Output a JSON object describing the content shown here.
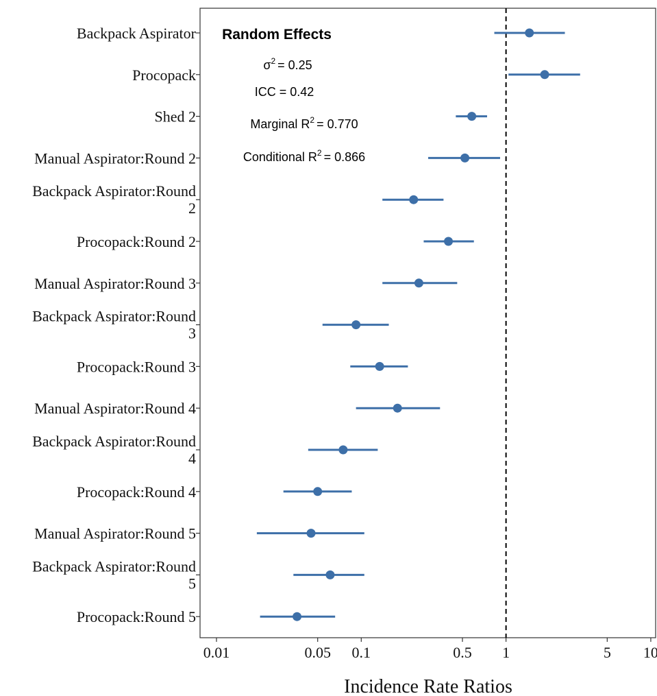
{
  "chart_data": {
    "type": "scatter",
    "subtype": "forest-plot",
    "x_scale": "log",
    "xlim": [
      0.0077,
      10.8
    ],
    "x_ticks": [
      0.01,
      0.05,
      0.1,
      0.5,
      1,
      5,
      10
    ],
    "x_tick_labels": [
      "0.01",
      "0.05",
      "0.1",
      "0.5",
      "1",
      "5",
      "10"
    ],
    "xlabel": "Incidence Rate Ratios",
    "reference_line": 1,
    "point_color": "#3d6fa8",
    "grid": false,
    "rows": [
      {
        "label": [
          "Backpack Aspirator"
        ],
        "estimate": 1.45,
        "ci_low": 0.83,
        "ci_high": 2.55
      },
      {
        "label": [
          "Procopack"
        ],
        "estimate": 1.85,
        "ci_low": 1.04,
        "ci_high": 3.25
      },
      {
        "label": [
          "Shed 2"
        ],
        "estimate": 0.58,
        "ci_low": 0.45,
        "ci_high": 0.74
      },
      {
        "label": [
          "Manual Aspirator:Round 2"
        ],
        "estimate": 0.52,
        "ci_low": 0.29,
        "ci_high": 0.91
      },
      {
        "label": [
          "Backpack Aspirator:Round",
          "2"
        ],
        "estimate": 0.23,
        "ci_low": 0.14,
        "ci_high": 0.37
      },
      {
        "label": [
          "Procopack:Round 2"
        ],
        "estimate": 0.4,
        "ci_low": 0.27,
        "ci_high": 0.6
      },
      {
        "label": [
          "Manual Aspirator:Round 3"
        ],
        "estimate": 0.25,
        "ci_low": 0.14,
        "ci_high": 0.46
      },
      {
        "label": [
          "Backpack Aspirator:Round",
          "3"
        ],
        "estimate": 0.092,
        "ci_low": 0.054,
        "ci_high": 0.155
      },
      {
        "label": [
          "Procopack:Round 3"
        ],
        "estimate": 0.134,
        "ci_low": 0.084,
        "ci_high": 0.21
      },
      {
        "label": [
          "Manual Aspirator:Round 4"
        ],
        "estimate": 0.178,
        "ci_low": 0.092,
        "ci_high": 0.35
      },
      {
        "label": [
          "Backpack Aspirator:Round",
          "4"
        ],
        "estimate": 0.075,
        "ci_low": 0.043,
        "ci_high": 0.13
      },
      {
        "label": [
          "Procopack:Round 4"
        ],
        "estimate": 0.05,
        "ci_low": 0.029,
        "ci_high": 0.086
      },
      {
        "label": [
          "Manual Aspirator:Round 5"
        ],
        "estimate": 0.045,
        "ci_low": 0.019,
        "ci_high": 0.105
      },
      {
        "label": [
          "Backpack Aspirator:Round",
          "5"
        ],
        "estimate": 0.061,
        "ci_low": 0.034,
        "ci_high": 0.105
      },
      {
        "label": [
          "Procopack:Round 5"
        ],
        "estimate": 0.036,
        "ci_low": 0.02,
        "ci_high": 0.066
      }
    ],
    "annotations": {
      "title": "Random Effects",
      "sigma2": {
        "symbol": "σ",
        "sup": "2",
        "value": "= 0.25"
      },
      "icc": "ICC = 0.42",
      "marginal": {
        "prefix": "Marginal  R",
        "sup": "2",
        "value": "= 0.770"
      },
      "conditional": {
        "prefix": "Conditional  R",
        "sup": "2",
        "value": "= 0.866"
      }
    }
  }
}
